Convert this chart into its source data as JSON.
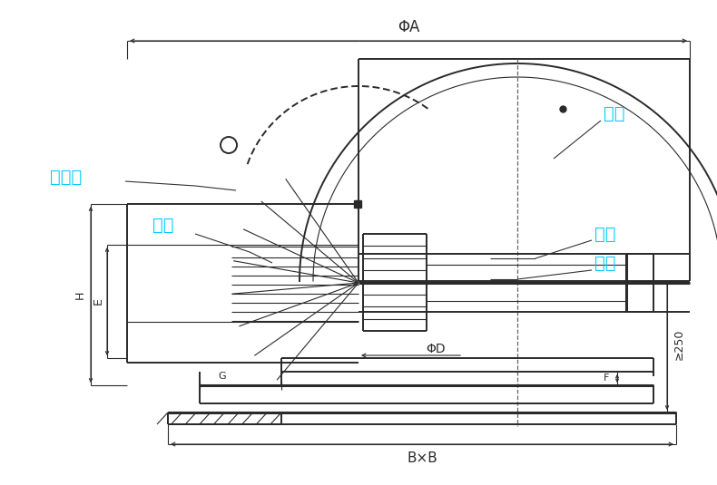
{
  "bg_color": "#ffffff",
  "line_color": "#2a2a2a",
  "cyan_color": "#00ccff",
  "fig_width": 7.9,
  "fig_height": 5.35,
  "labels": {
    "feng_mao": "风帽",
    "feng_tong": "风筒",
    "dian_ji": "电机",
    "ye_lun": "叶轮",
    "fang_niao_wang": "防鸟网",
    "phi_A": "ΦA",
    "phi_D": "ΦD",
    "B_x_B": "B×B",
    "dim_ge250": "≥250",
    "dim_F": "F",
    "dim_H": "H",
    "dim_E": "E",
    "dim_G": "G"
  }
}
